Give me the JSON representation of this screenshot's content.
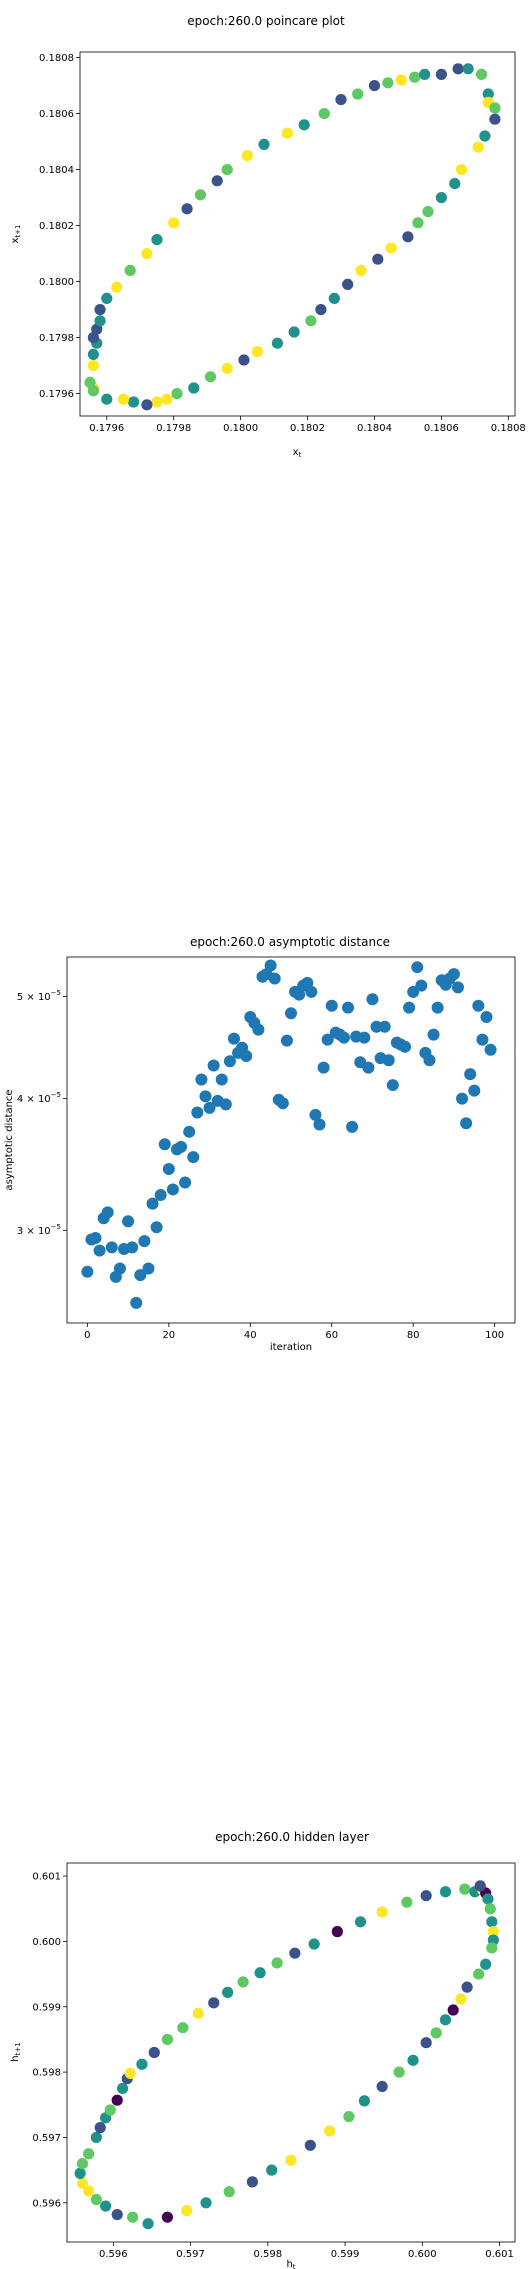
{
  "chart_data": [
    {
      "type": "scatter",
      "title": "epoch:260.0 poincare plot",
      "xlabel": "x_t",
      "ylabel": "x_{t+1}",
      "xlim": [
        0.17952,
        0.18082
      ],
      "ylim": [
        0.17952,
        0.18082
      ],
      "xticks": [
        0.1796,
        0.1798,
        0.18,
        0.1802,
        0.1804,
        0.1806,
        0.1808
      ],
      "yticks": [
        0.1796,
        0.1798,
        0.18,
        0.1802,
        0.1804,
        0.1806,
        0.1808
      ],
      "xtick_labels": [
        "0.1796",
        "0.1798",
        "0.1800",
        "0.1802",
        "0.1804",
        "0.1806",
        "0.1808"
      ],
      "ytick_labels": [
        "0.1796",
        "0.1798",
        "0.1800",
        "0.1802",
        "0.1804",
        "0.1806",
        "0.1808"
      ],
      "colormap": [
        "#440154",
        "#3b528b",
        "#21918c",
        "#5ec962",
        "#fde725"
      ],
      "points": [
        [
          0.17956,
          0.17962,
          4
        ],
        [
          0.17955,
          0.17964,
          3
        ],
        [
          0.17956,
          0.1797,
          4
        ],
        [
          0.17956,
          0.17974,
          2
        ],
        [
          0.17957,
          0.17978,
          2
        ],
        [
          0.17956,
          0.1798,
          1
        ],
        [
          0.17957,
          0.17983,
          1
        ],
        [
          0.17958,
          0.17986,
          2
        ],
        [
          0.17958,
          0.1799,
          1
        ],
        [
          0.1796,
          0.17994,
          2
        ],
        [
          0.17963,
          0.17998,
          4
        ],
        [
          0.17967,
          0.18004,
          3
        ],
        [
          0.17972,
          0.1801,
          4
        ],
        [
          0.17975,
          0.18015,
          2
        ],
        [
          0.1798,
          0.18021,
          4
        ],
        [
          0.17984,
          0.18026,
          1
        ],
        [
          0.17988,
          0.18031,
          3
        ],
        [
          0.17993,
          0.18036,
          1
        ],
        [
          0.17996,
          0.1804,
          3
        ],
        [
          0.18002,
          0.18045,
          4
        ],
        [
          0.18007,
          0.18049,
          2
        ],
        [
          0.18014,
          0.18053,
          4
        ],
        [
          0.18019,
          0.18056,
          2
        ],
        [
          0.18025,
          0.1806,
          3
        ],
        [
          0.1803,
          0.18065,
          1
        ],
        [
          0.18035,
          0.18067,
          3
        ],
        [
          0.1804,
          0.1807,
          1
        ],
        [
          0.18044,
          0.18071,
          3
        ],
        [
          0.18048,
          0.18072,
          4
        ],
        [
          0.18052,
          0.18073,
          3
        ],
        [
          0.18055,
          0.18074,
          2
        ],
        [
          0.1806,
          0.18074,
          1
        ],
        [
          0.18065,
          0.18076,
          1
        ],
        [
          0.18068,
          0.18076,
          2
        ],
        [
          0.18072,
          0.18074,
          3
        ],
        [
          0.18074,
          0.18067,
          2
        ],
        [
          0.18074,
          0.18064,
          4
        ],
        [
          0.18076,
          0.18062,
          3
        ],
        [
          0.18076,
          0.18058,
          1
        ],
        [
          0.18073,
          0.18052,
          2
        ],
        [
          0.18071,
          0.18048,
          4
        ],
        [
          0.18066,
          0.1804,
          4
        ],
        [
          0.18064,
          0.18035,
          2
        ],
        [
          0.1806,
          0.1803,
          2
        ],
        [
          0.18056,
          0.18025,
          3
        ],
        [
          0.18053,
          0.18021,
          3
        ],
        [
          0.1805,
          0.18016,
          1
        ],
        [
          0.18045,
          0.18012,
          4
        ],
        [
          0.18041,
          0.18008,
          1
        ],
        [
          0.18036,
          0.18004,
          4
        ],
        [
          0.18032,
          0.17999,
          1
        ],
        [
          0.18028,
          0.17994,
          2
        ],
        [
          0.18024,
          0.1799,
          1
        ],
        [
          0.18021,
          0.17986,
          3
        ],
        [
          0.18016,
          0.17982,
          2
        ],
        [
          0.18011,
          0.17978,
          2
        ],
        [
          0.18005,
          0.17975,
          4
        ],
        [
          0.18001,
          0.17972,
          1
        ],
        [
          0.17996,
          0.17969,
          4
        ],
        [
          0.17991,
          0.17966,
          3
        ],
        [
          0.17986,
          0.17962,
          2
        ],
        [
          0.17981,
          0.1796,
          3
        ],
        [
          0.17978,
          0.17958,
          4
        ],
        [
          0.17975,
          0.17957,
          4
        ],
        [
          0.17972,
          0.17956,
          1
        ],
        [
          0.17968,
          0.17957,
          2
        ],
        [
          0.17965,
          0.17958,
          4
        ],
        [
          0.1796,
          0.17958,
          2
        ],
        [
          0.17956,
          0.17961,
          3
        ]
      ]
    },
    {
      "type": "scatter",
      "title": "epoch:260.0 asymptotic distance",
      "xlabel": "iteration",
      "ylabel": "asymptotic distance",
      "yscale": "log",
      "xlim": [
        -5,
        105
      ],
      "ylim": [
        2.45e-05,
        5.45e-05
      ],
      "xticks": [
        0,
        20,
        40,
        60,
        80,
        100
      ],
      "xtick_labels": [
        "0",
        "20",
        "40",
        "60",
        "80",
        "100"
      ],
      "yticks": [
        3e-05,
        4e-05,
        5e-05
      ],
      "ytick_base": [
        "3 × 10",
        "4 × 10",
        "5 × 10"
      ],
      "ytick_exp": "−5",
      "color": "#1f77b4",
      "x": [
        0,
        1,
        2,
        3,
        4,
        5,
        6,
        7,
        8,
        9,
        10,
        11,
        12,
        13,
        14,
        15,
        16,
        17,
        18,
        19,
        20,
        21,
        22,
        23,
        24,
        25,
        26,
        27,
        28,
        29,
        30,
        31,
        32,
        33,
        34,
        35,
        36,
        37,
        38,
        39,
        40,
        41,
        42,
        43,
        44,
        45,
        46,
        47,
        48,
        49,
        50,
        51,
        52,
        53,
        54,
        55,
        56,
        57,
        58,
        59,
        60,
        61,
        62,
        63,
        64,
        65,
        66,
        67,
        68,
        69,
        70,
        71,
        72,
        73,
        74,
        75,
        76,
        77,
        78,
        79,
        80,
        81,
        82,
        83,
        84,
        85,
        86,
        87,
        88,
        89,
        90,
        91,
        92,
        93,
        94,
        95,
        96,
        97,
        98,
        99
      ],
      "y": [
        2.74e-05,
        2.94e-05,
        2.95e-05,
        2.87e-05,
        3.08e-05,
        3.12e-05,
        2.89e-05,
        2.71e-05,
        2.76e-05,
        2.88e-05,
        3.06e-05,
        2.89e-05,
        2.56e-05,
        2.72e-05,
        2.93e-05,
        2.76e-05,
        3.18e-05,
        3.02e-05,
        3.24e-05,
        3.62e-05,
        3.43e-05,
        3.28e-05,
        3.58e-05,
        3.6e-05,
        3.33e-05,
        3.72e-05,
        3.52e-05,
        3.88e-05,
        4.17e-05,
        4.02e-05,
        3.92e-05,
        4.3e-05,
        3.98e-05,
        4.17e-05,
        3.95e-05,
        4.34e-05,
        4.56e-05,
        4.42e-05,
        4.47e-05,
        4.39e-05,
        4.78e-05,
        4.72e-05,
        4.65e-05,
        5.22e-05,
        5.25e-05,
        5.35e-05,
        5.2e-05,
        3.99e-05,
        3.96e-05,
        4.54e-05,
        4.82e-05,
        5.05e-05,
        5.02e-05,
        5.12e-05,
        5.15e-05,
        5.05e-05,
        3.86e-05,
        3.78e-05,
        4.28e-05,
        4.55e-05,
        4.9e-05,
        4.62e-05,
        4.6e-05,
        4.57e-05,
        4.88e-05,
        3.76e-05,
        4.58e-05,
        4.33e-05,
        4.57e-05,
        4.28e-05,
        4.97e-05,
        4.68e-05,
        4.37e-05,
        4.68e-05,
        4.35e-05,
        4.12e-05,
        4.52e-05,
        4.5e-05,
        4.48e-05,
        4.88e-05,
        5.05e-05,
        5.33e-05,
        5.12e-05,
        4.42e-05,
        4.35e-05,
        4.6e-05,
        4.88e-05,
        5.18e-05,
        5.13e-05,
        5.2e-05,
        5.25e-05,
        5.1e-05,
        4e-05,
        3.79e-05,
        4.22e-05,
        4.07e-05,
        4.9e-05,
        4.55e-05,
        4.78e-05,
        4.45e-05
      ]
    },
    {
      "type": "scatter",
      "title": "epoch:260.0 hidden layer",
      "xlabel": "h_t",
      "ylabel": "h_{t+1}",
      "xlim": [
        0.5954,
        0.6012
      ],
      "ylim": [
        0.5954,
        0.6012
      ],
      "xticks": [
        0.596,
        0.597,
        0.598,
        0.599,
        0.6,
        0.601
      ],
      "yticks": [
        0.596,
        0.597,
        0.598,
        0.599,
        0.6,
        0.601
      ],
      "xtick_labels": [
        "0.596",
        "0.597",
        "0.598",
        "0.599",
        "0.600",
        "0.601"
      ],
      "ytick_labels": [
        "0.596",
        "0.597",
        "0.598",
        "0.599",
        "0.600",
        "0.601"
      ],
      "colormap": [
        "#440154",
        "#3b528b",
        "#21918c",
        "#5ec962",
        "#fde725"
      ],
      "points": [
        [
          0.5956,
          0.5963,
          4
        ],
        [
          0.59557,
          0.59645,
          2
        ],
        [
          0.5956,
          0.5966,
          3
        ],
        [
          0.59568,
          0.59675,
          3
        ],
        [
          0.59578,
          0.597,
          2
        ],
        [
          0.59583,
          0.59715,
          1
        ],
        [
          0.5959,
          0.5973,
          2
        ],
        [
          0.59596,
          0.59742,
          3
        ],
        [
          0.59605,
          0.59757,
          0
        ],
        [
          0.59612,
          0.59775,
          2
        ],
        [
          0.59618,
          0.5979,
          1
        ],
        [
          0.59622,
          0.59798,
          4
        ],
        [
          0.59637,
          0.59812,
          2
        ],
        [
          0.59653,
          0.5983,
          1
        ],
        [
          0.5967,
          0.5985,
          3
        ],
        [
          0.5969,
          0.59868,
          3
        ],
        [
          0.5971,
          0.5989,
          4
        ],
        [
          0.5973,
          0.59906,
          1
        ],
        [
          0.59748,
          0.59922,
          2
        ],
        [
          0.59768,
          0.59938,
          3
        ],
        [
          0.5979,
          0.59952,
          2
        ],
        [
          0.59812,
          0.59967,
          3
        ],
        [
          0.59835,
          0.59982,
          1
        ],
        [
          0.5986,
          0.59996,
          2
        ],
        [
          0.5989,
          0.60015,
          0
        ],
        [
          0.5992,
          0.6003,
          2
        ],
        [
          0.59948,
          0.60045,
          4
        ],
        [
          0.5998,
          0.6006,
          3
        ],
        [
          0.60005,
          0.6007,
          1
        ],
        [
          0.6003,
          0.60076,
          2
        ],
        [
          0.60055,
          0.6008,
          3
        ],
        [
          0.60068,
          0.60076,
          2
        ],
        [
          0.60078,
          0.60079,
          4
        ],
        [
          0.60082,
          0.60074,
          0
        ],
        [
          0.60075,
          0.60085,
          1
        ],
        [
          0.60085,
          0.60065,
          2
        ],
        [
          0.60088,
          0.6005,
          3
        ],
        [
          0.6009,
          0.6003,
          2
        ],
        [
          0.60092,
          0.60015,
          4
        ],
        [
          0.60092,
          0.60002,
          2
        ],
        [
          0.6009,
          0.5999,
          3
        ],
        [
          0.60082,
          0.59965,
          2
        ],
        [
          0.60073,
          0.5995,
          3
        ],
        [
          0.60058,
          0.5993,
          1
        ],
        [
          0.6005,
          0.59912,
          4
        ],
        [
          0.6004,
          0.59895,
          0
        ],
        [
          0.6003,
          0.5988,
          2
        ],
        [
          0.60018,
          0.5986,
          3
        ],
        [
          0.60005,
          0.59845,
          1
        ],
        [
          0.59988,
          0.59818,
          2
        ],
        [
          0.5997,
          0.598,
          3
        ],
        [
          0.59948,
          0.59778,
          1
        ],
        [
          0.59925,
          0.59756,
          2
        ],
        [
          0.59905,
          0.59732,
          3
        ],
        [
          0.5988,
          0.5971,
          4
        ],
        [
          0.59855,
          0.59688,
          1
        ],
        [
          0.5983,
          0.59665,
          4
        ],
        [
          0.59805,
          0.5965,
          2
        ],
        [
          0.5978,
          0.59632,
          1
        ],
        [
          0.5975,
          0.59617,
          3
        ],
        [
          0.5972,
          0.596,
          2
        ],
        [
          0.59695,
          0.59588,
          4
        ],
        [
          0.5967,
          0.59578,
          0
        ],
        [
          0.59645,
          0.59568,
          2
        ],
        [
          0.59625,
          0.59578,
          3
        ],
        [
          0.59605,
          0.59582,
          1
        ],
        [
          0.5959,
          0.59595,
          2
        ],
        [
          0.59578,
          0.59605,
          3
        ],
        [
          0.59568,
          0.59618,
          4
        ]
      ]
    }
  ]
}
